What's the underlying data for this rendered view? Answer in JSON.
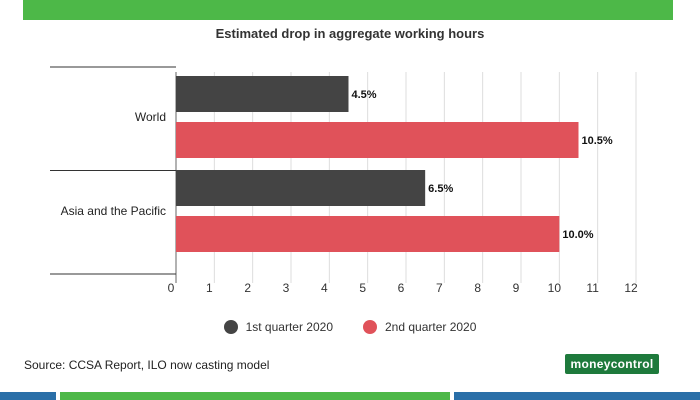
{
  "chart_data": {
    "type": "bar",
    "orientation": "horizontal",
    "title": "Estimated drop in aggregate working hours",
    "categories": [
      "World",
      "Asia and the Pacific"
    ],
    "series": [
      {
        "name": "1st quarter 2020",
        "values": [
          4.5,
          6.5
        ],
        "labels": [
          "4.5%",
          "6.5%"
        ],
        "color": "#444444"
      },
      {
        "name": "2nd quarter 2020",
        "values": [
          10.5,
          10.0
        ],
        "labels": [
          "10.5%",
          "10.0%"
        ],
        "color": "#e0525a"
      }
    ],
    "xlim": [
      0,
      12
    ],
    "xticks": [
      0,
      1,
      2,
      3,
      4,
      5,
      6,
      7,
      8,
      9,
      10,
      11,
      12
    ],
    "grid": true,
    "legend_position": "bottom"
  },
  "footer": {
    "source": "Source: CCSA Report, ILO now casting model",
    "brand": "moneycontrol"
  },
  "colors": {
    "top_bar": "#4db848",
    "brand_bg": "#1e7a3c",
    "grid": "#dddddd"
  }
}
